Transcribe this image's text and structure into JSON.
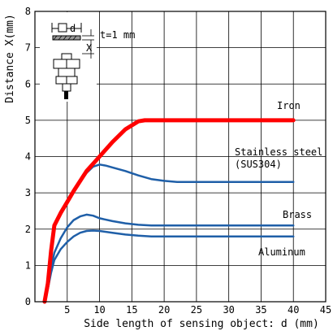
{
  "chart_data": {
    "type": "line",
    "title": "",
    "xlabel": "Side length of sensing object: d (mm)",
    "ylabel": "Distance X(mm)",
    "xlim": [
      0,
      45
    ],
    "ylim": [
      0,
      8
    ],
    "xticks": [
      5,
      10,
      15,
      20,
      25,
      30,
      35,
      40,
      45
    ],
    "yticks": [
      0,
      1,
      2,
      3,
      4,
      5,
      6,
      7,
      8
    ],
    "grid": true,
    "series": [
      {
        "name": "Iron",
        "color": "#ff0000",
        "x": [
          1.5,
          2,
          2.5,
          3,
          4,
          5,
          6,
          8,
          10,
          12,
          14,
          16,
          17,
          20,
          25,
          30,
          35,
          40
        ],
        "y": [
          0,
          0.5,
          1.4,
          2.1,
          2.45,
          2.75,
          3.05,
          3.6,
          4.0,
          4.4,
          4.75,
          4.97,
          5.0,
          5.0,
          5.0,
          5.0,
          5.0,
          5.0
        ]
      },
      {
        "name": "Stainless steel (SUS304)",
        "color": "#1f5fa8",
        "x": [
          1.5,
          2,
          2.5,
          3,
          4,
          5,
          6,
          7,
          8,
          9,
          10,
          11,
          12,
          14,
          16,
          18,
          20,
          22,
          24,
          26,
          30,
          35,
          40
        ],
        "y": [
          0,
          0.5,
          1.4,
          2.1,
          2.45,
          2.75,
          3.05,
          3.3,
          3.55,
          3.72,
          3.78,
          3.75,
          3.7,
          3.6,
          3.48,
          3.38,
          3.33,
          3.3,
          3.3,
          3.3,
          3.3,
          3.3,
          3.3
        ]
      },
      {
        "name": "Brass",
        "color": "#1f5fa8",
        "x": [
          1.5,
          2,
          2.5,
          3,
          4,
          5,
          6,
          7,
          8,
          9,
          10,
          12,
          14,
          16,
          18,
          20,
          25,
          30,
          35,
          40
        ],
        "y": [
          0,
          0.4,
          0.95,
          1.35,
          1.75,
          2.05,
          2.25,
          2.35,
          2.4,
          2.37,
          2.3,
          2.22,
          2.16,
          2.12,
          2.1,
          2.1,
          2.1,
          2.1,
          2.1,
          2.1
        ]
      },
      {
        "name": "Aluminum",
        "color": "#1f5fa8",
        "x": [
          1.5,
          2,
          2.5,
          3,
          4,
          5,
          6,
          7,
          8,
          9,
          10,
          12,
          14,
          16,
          18,
          20,
          25,
          30,
          35,
          40
        ],
        "y": [
          0,
          0.35,
          0.8,
          1.15,
          1.45,
          1.65,
          1.8,
          1.9,
          1.95,
          1.96,
          1.95,
          1.9,
          1.85,
          1.82,
          1.8,
          1.8,
          1.8,
          1.8,
          1.8,
          1.8
        ]
      }
    ],
    "labels": {
      "iron": "Iron",
      "stainless_1": "Stainless steel",
      "stainless_2": "(SUS304)",
      "brass": "Brass",
      "aluminum": "Aluminum"
    },
    "diagram": {
      "d_label": "d",
      "t_label": "t=1 mm",
      "x_label": "X"
    }
  }
}
